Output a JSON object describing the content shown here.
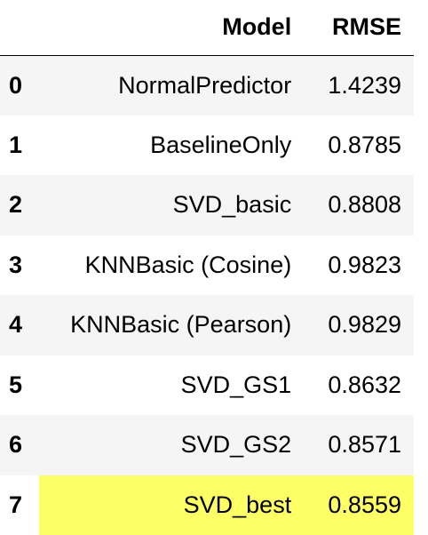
{
  "table": {
    "columns": {
      "index": "",
      "model": "Model",
      "rmse": "RMSE"
    },
    "rows": [
      {
        "index": "0",
        "model": "NormalPredictor",
        "rmse": "1.4239"
      },
      {
        "index": "1",
        "model": "BaselineOnly",
        "rmse": "0.8785"
      },
      {
        "index": "2",
        "model": "SVD_basic",
        "rmse": "0.8808"
      },
      {
        "index": "3",
        "model": "KNNBasic (Cosine)",
        "rmse": "0.9823"
      },
      {
        "index": "4",
        "model": "KNNBasic (Pearson)",
        "rmse": "0.9829"
      },
      {
        "index": "5",
        "model": "SVD_GS1",
        "rmse": "0.8632"
      },
      {
        "index": "6",
        "model": "SVD_GS2",
        "rmse": "0.8571"
      },
      {
        "index": "7",
        "model": "SVD_best",
        "rmse": "0.8559"
      }
    ],
    "highlighted_row": 7,
    "highlight_color": "#ffff66",
    "stripe_color": "#f5f5f5"
  }
}
